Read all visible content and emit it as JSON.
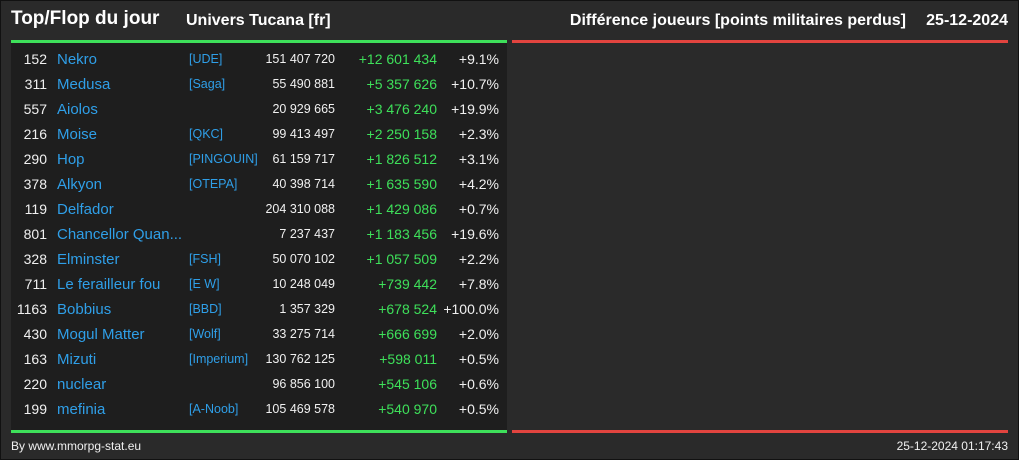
{
  "header": {
    "title": "Top/Flop du jour",
    "universe": "Univers Tucana [fr]",
    "metric": "Différence joueurs [points militaires perdus]",
    "date": "25-12-2024"
  },
  "colors": {
    "background": "#2a2a2a",
    "panel": "#1e1e1e",
    "top_accent": "#3ee05a",
    "flop_accent": "#e2443f",
    "link": "#2f9fe8"
  },
  "top": [
    {
      "rank": "152",
      "name": "Nekro",
      "alliance": "[UDE]",
      "points": "151 407 720",
      "diff": "+12 601 434",
      "pct": "+9.1%"
    },
    {
      "rank": "311",
      "name": "Medusa",
      "alliance": "[Saga]",
      "points": "55 490 881",
      "diff": "+5 357 626",
      "pct": "+10.7%"
    },
    {
      "rank": "557",
      "name": "Aiolos",
      "alliance": "",
      "points": "20 929 665",
      "diff": "+3 476 240",
      "pct": "+19.9%"
    },
    {
      "rank": "216",
      "name": "Moise",
      "alliance": "[QKC]",
      "points": "99 413 497",
      "diff": "+2 250 158",
      "pct": "+2.3%"
    },
    {
      "rank": "290",
      "name": "Hop",
      "alliance": "[PINGOUIN]",
      "points": "61 159 717",
      "diff": "+1 826 512",
      "pct": "+3.1%"
    },
    {
      "rank": "378",
      "name": "Alkyon",
      "alliance": "[OTEPA]",
      "points": "40 398 714",
      "diff": "+1 635 590",
      "pct": "+4.2%"
    },
    {
      "rank": "119",
      "name": "Delfador",
      "alliance": "",
      "points": "204 310 088",
      "diff": "+1 429 086",
      "pct": "+0.7%"
    },
    {
      "rank": "801",
      "name": "Chancellor Quan...",
      "alliance": "",
      "points": "7 237 437",
      "diff": "+1 183 456",
      "pct": "+19.6%"
    },
    {
      "rank": "328",
      "name": "Elminster",
      "alliance": "[FSH]",
      "points": "50 070 102",
      "diff": "+1 057 509",
      "pct": "+2.2%"
    },
    {
      "rank": "711",
      "name": "Le ferailleur fou",
      "alliance": "[E W]",
      "points": "10 248 049",
      "diff": "+739 442",
      "pct": "+7.8%"
    },
    {
      "rank": "1163",
      "name": "Bobbius",
      "alliance": "[BBD]",
      "points": "1 357 329",
      "diff": "+678 524",
      "pct": "+100.0%"
    },
    {
      "rank": "430",
      "name": "Mogul Matter",
      "alliance": "[Wolf]",
      "points": "33 275 714",
      "diff": "+666 699",
      "pct": "+2.0%"
    },
    {
      "rank": "163",
      "name": "Mizuti",
      "alliance": "[Imperium]",
      "points": "130 762 125",
      "diff": "+598 011",
      "pct": "+0.5%"
    },
    {
      "rank": "220",
      "name": "nuclear",
      "alliance": "",
      "points": "96 856 100",
      "diff": "+545 106",
      "pct": "+0.6%"
    },
    {
      "rank": "199",
      "name": "mefinia",
      "alliance": "[A-Noob]",
      "points": "105 469 578",
      "diff": "+540 970",
      "pct": "+0.5%"
    }
  ],
  "flop": [],
  "footer": {
    "credit": "By www.mmorpg-stat.eu",
    "timestamp": "25-12-2024 01:17:43"
  }
}
